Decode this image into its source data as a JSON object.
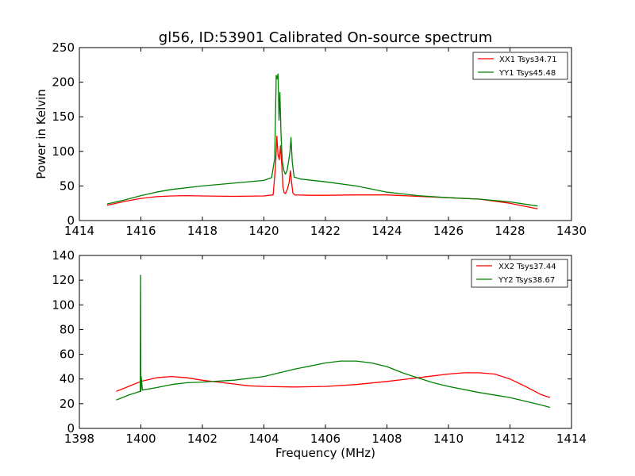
{
  "chart_data": [
    {
      "type": "line",
      "title": "gl56, ID:53901 Calibrated On-source spectrum",
      "xlabel": "",
      "ylabel": "Power in Kelvin",
      "xlim": [
        1414,
        1430
      ],
      "ylim": [
        0,
        250
      ],
      "xticks": [
        1414,
        1416,
        1418,
        1420,
        1422,
        1424,
        1426,
        1428,
        1430
      ],
      "yticks": [
        0,
        50,
        100,
        150,
        200,
        250
      ],
      "legend_position": "top-right",
      "series": [
        {
          "name": "XX1 Tsys34.71",
          "color": "#ff0000",
          "x": [
            1414.9,
            1415.5,
            1416.0,
            1416.5,
            1417.0,
            1417.5,
            1418.0,
            1419.0,
            1420.0,
            1420.3,
            1420.38,
            1420.42,
            1420.46,
            1420.5,
            1420.54,
            1420.58,
            1420.62,
            1420.66,
            1420.7,
            1420.76,
            1420.82,
            1420.86,
            1420.9,
            1420.94,
            1421.0,
            1421.5,
            1422.0,
            1423.0,
            1424.0,
            1425.0,
            1426.0,
            1427.0,
            1428.0,
            1428.9
          ],
          "y": [
            22,
            28,
            32,
            34.5,
            35.5,
            36,
            35.5,
            35,
            35.5,
            37,
            80,
            122,
            95,
            88,
            108,
            80,
            48,
            40,
            39,
            45,
            55,
            72,
            55,
            40,
            37,
            36.5,
            36.5,
            37,
            37,
            35,
            33,
            31,
            25,
            17
          ]
        },
        {
          "name": "YY1 Tsys45.48",
          "color": "#008000",
          "x": [
            1414.9,
            1415.5,
            1416.0,
            1416.5,
            1417.0,
            1418.0,
            1419.0,
            1420.0,
            1420.25,
            1420.35,
            1420.4,
            1420.43,
            1420.46,
            1420.49,
            1420.52,
            1420.56,
            1420.6,
            1420.65,
            1420.7,
            1420.75,
            1420.8,
            1420.85,
            1420.88,
            1420.92,
            1420.98,
            1421.2,
            1422.0,
            1423.0,
            1424.0,
            1425.0,
            1426.0,
            1427.0,
            1428.0,
            1428.9
          ],
          "y": [
            24,
            30,
            36,
            41,
            45,
            50,
            54,
            58,
            62,
            90,
            210,
            205,
            212,
            145,
            185,
            120,
            85,
            72,
            67,
            72,
            85,
            100,
            120,
            85,
            63,
            60,
            56,
            50,
            41,
            36,
            33,
            31,
            27,
            21
          ]
        }
      ]
    },
    {
      "type": "line",
      "title": "",
      "xlabel": "Frequency (MHz)",
      "ylabel": "",
      "xlim": [
        1398,
        1414
      ],
      "ylim": [
        0,
        140
      ],
      "xticks": [
        1398,
        1400,
        1402,
        1404,
        1406,
        1408,
        1410,
        1412,
        1414
      ],
      "yticks": [
        0,
        20,
        40,
        60,
        80,
        100,
        120,
        140
      ],
      "legend_position": "top-right",
      "series": [
        {
          "name": "XX2 Tsys37.44",
          "color": "#ff0000",
          "x": [
            1399.2,
            1399.6,
            1400.0,
            1400.5,
            1401.0,
            1401.5,
            1402.0,
            1402.5,
            1403.0,
            1403.5,
            1404.0,
            1405.0,
            1406.0,
            1407.0,
            1408.0,
            1409.0,
            1409.5,
            1410.0,
            1410.5,
            1411.0,
            1411.5,
            1412.0,
            1412.5,
            1413.0,
            1413.3
          ],
          "y": [
            30,
            34,
            38,
            41,
            42,
            41,
            39,
            37.5,
            36,
            34.5,
            34,
            33.5,
            34,
            35.5,
            38,
            41,
            42.5,
            44,
            45,
            45,
            44,
            40,
            34,
            27.5,
            25
          ]
        },
        {
          "name": "YY2 Tsys38.67",
          "color": "#008000",
          "x": [
            1399.2,
            1399.6,
            1399.98,
            1399.99,
            1400.0,
            1400.01,
            1400.05,
            1400.5,
            1401.0,
            1401.5,
            1402.0,
            1403.0,
            1404.0,
            1405.0,
            1406.0,
            1406.5,
            1407.0,
            1407.5,
            1408.0,
            1408.5,
            1409.0,
            1409.5,
            1410.0,
            1411.0,
            1412.0,
            1413.0,
            1413.3
          ],
          "y": [
            23,
            27,
            30,
            124,
            30,
            42,
            31,
            33,
            35.5,
            37,
            37.5,
            39,
            42,
            48,
            53,
            54.5,
            54.5,
            53,
            50,
            45,
            41,
            37,
            34,
            29,
            25,
            19,
            17
          ]
        }
      ]
    }
  ]
}
